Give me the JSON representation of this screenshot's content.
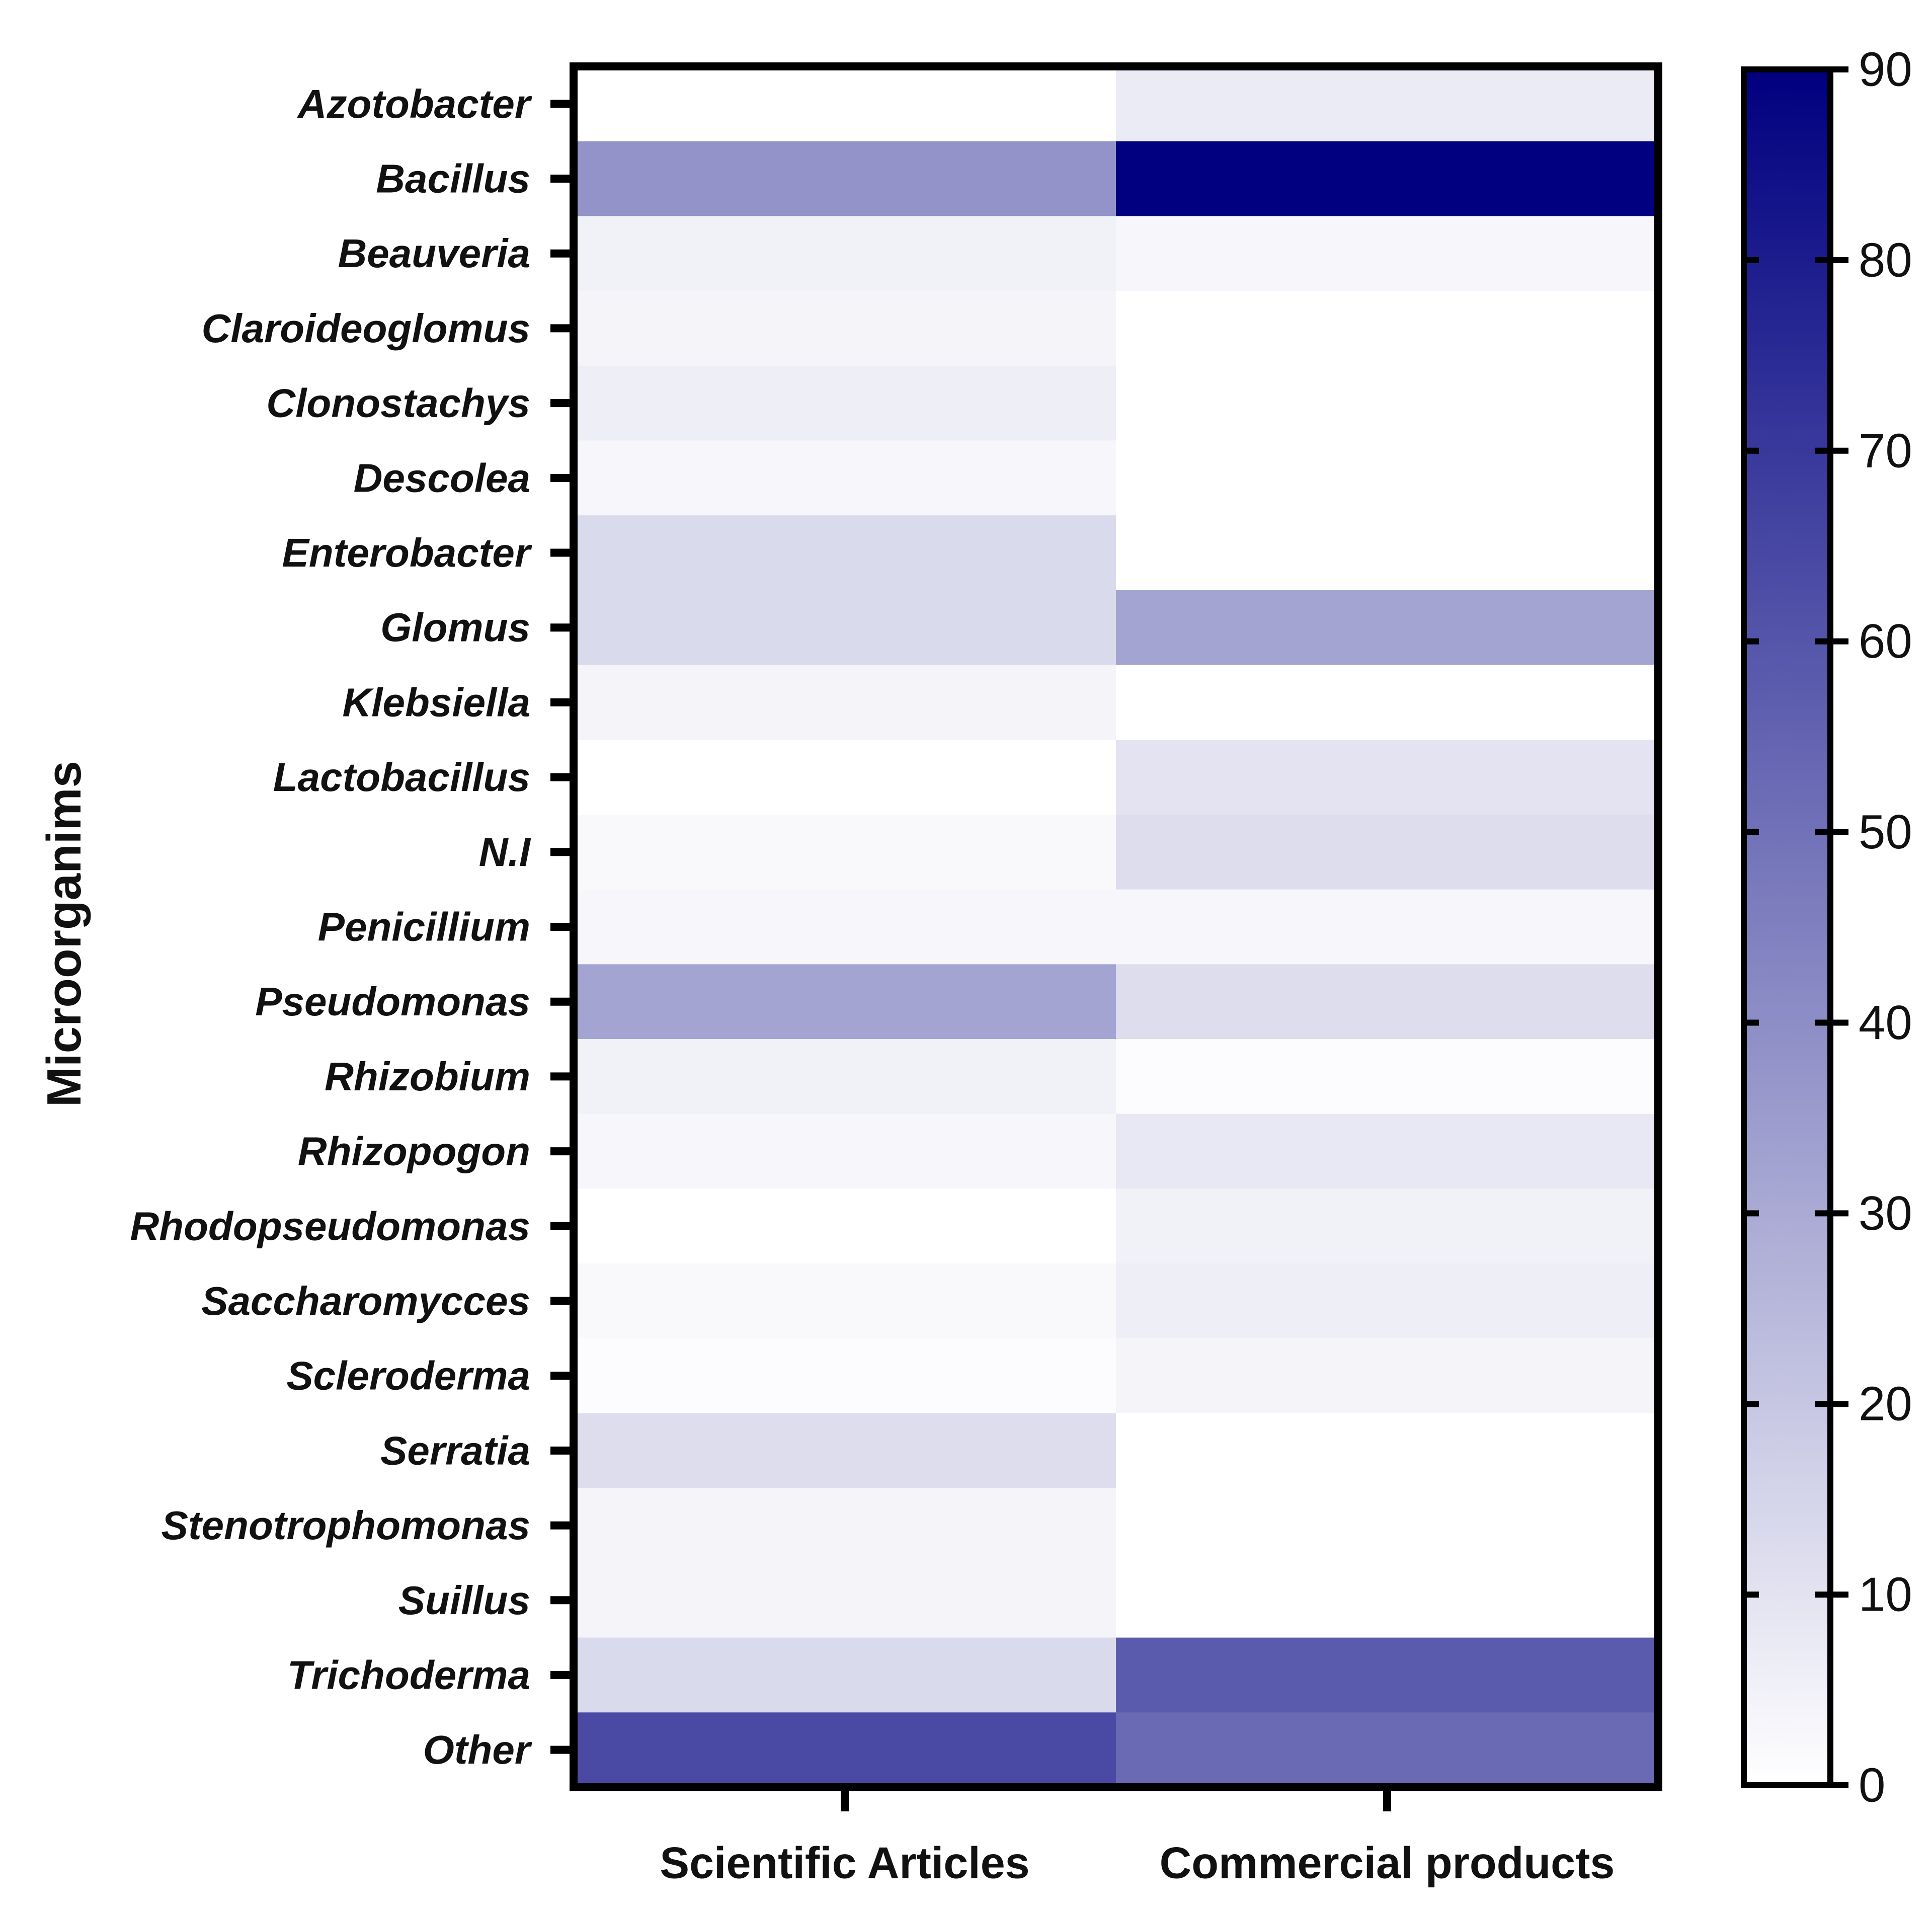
{
  "chart_data": {
    "type": "heatmap",
    "title": "",
    "ylabel": "Microorganims",
    "xlabel": "",
    "columns": [
      "Scientific Articles",
      "Commercial products"
    ],
    "rows": [
      "Azotobacter",
      "Bacillus",
      "Beauveria",
      "Claroideoglomus",
      "Clonostachys",
      "Descolea",
      "Enterobacter",
      "Glomus",
      "Klebsiella",
      "Lactobacillus",
      "N.I",
      "Penicillium",
      "Pseudomonas",
      "Rhizobium",
      "Rhizopogon",
      "Rhodopseudomonas",
      "Saccharomycces",
      "Scleroderma",
      "Serratia",
      "Stenotrophomonas",
      "Suillus",
      "Trichoderma",
      "Other"
    ],
    "values": [
      [
        0,
        7
      ],
      [
        38,
        90
      ],
      [
        5,
        3
      ],
      [
        4,
        0
      ],
      [
        6,
        0
      ],
      [
        3,
        0
      ],
      [
        13,
        0
      ],
      [
        13,
        32
      ],
      [
        4,
        0
      ],
      [
        0,
        10
      ],
      [
        2,
        12
      ],
      [
        3,
        3
      ],
      [
        32,
        12
      ],
      [
        5,
        1
      ],
      [
        3,
        8
      ],
      [
        0,
        5
      ],
      [
        2,
        6
      ],
      [
        1,
        4
      ],
      [
        12,
        0
      ],
      [
        4,
        0
      ],
      [
        4,
        0
      ],
      [
        13,
        58
      ],
      [
        64,
        53
      ]
    ],
    "colorbar": {
      "min": 0,
      "max": 90,
      "ticks": [
        0,
        10,
        20,
        30,
        40,
        50,
        60,
        70,
        80,
        90
      ],
      "low_color": "#ffffff",
      "high_color": "#000080"
    }
  }
}
